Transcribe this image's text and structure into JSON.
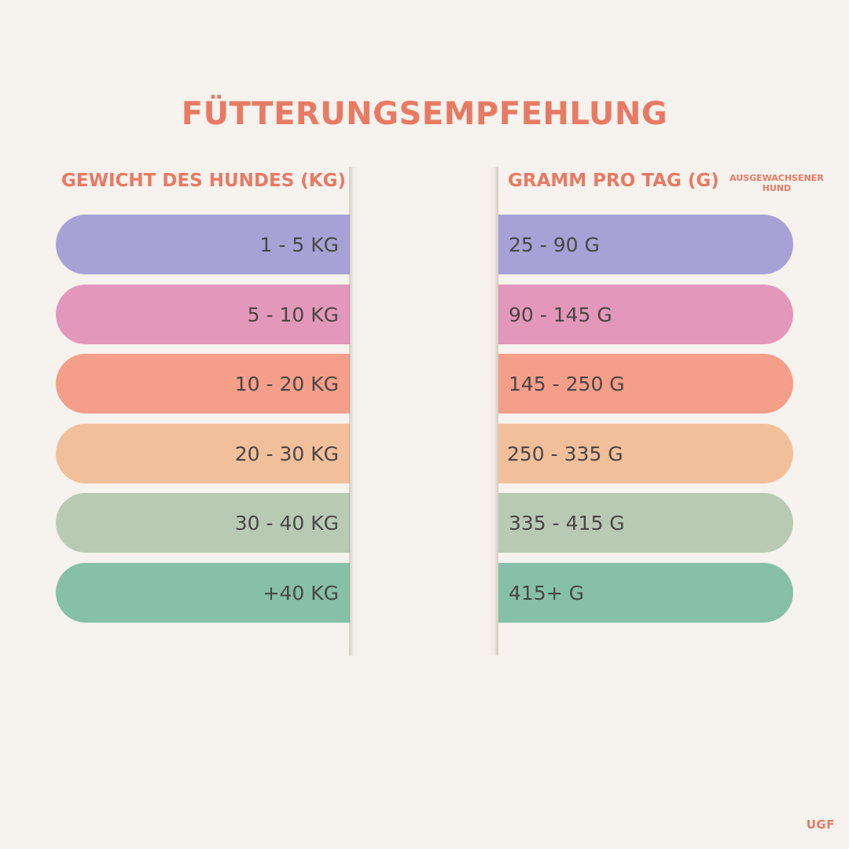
{
  "title": "FÜTTERUNGSEMPFEHLUNG",
  "headers": {
    "weight": "GEWICHT DES HUNDES (KG)",
    "grams": "GRAMM PRO TAG (G)",
    "note_line1": "AUSGEWACHSENER",
    "note_line2": "HUND"
  },
  "rows": [
    {
      "weight": "1 - 5 KG",
      "grams": "25 - 90 G",
      "color": "#a8a1d6"
    },
    {
      "weight": "5 - 10 KG",
      "grams": "90 - 145 G",
      "color": "#e297bb"
    },
    {
      "weight": "10 - 20 KG",
      "grams": "145 - 250 G",
      "color": "#f59e89"
    },
    {
      "weight": "20 - 30 KG",
      "grams": "250 - 335 G",
      "color": "#f2bf9b"
    },
    {
      "weight": "30 - 40 KG",
      "grams": "335 - 415 G",
      "color": "#b8cab4"
    },
    {
      "weight": "+40 KG",
      "grams": "415+ G",
      "color": "#86c0a8"
    }
  ],
  "brand": "UGF",
  "colors": {
    "accent": "#e87a64",
    "background": "#f6f2ed",
    "text": "#4a4646"
  }
}
